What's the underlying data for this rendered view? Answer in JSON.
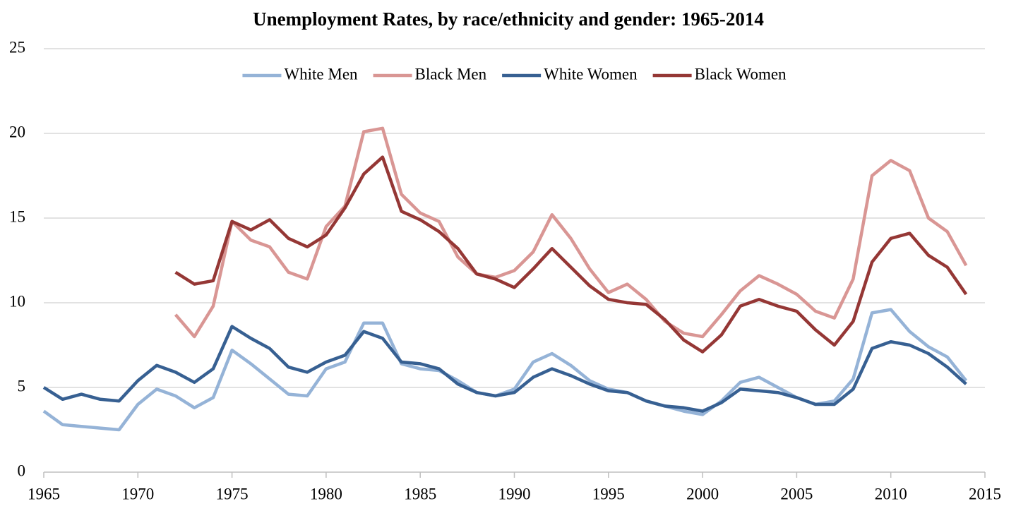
{
  "chart_data": {
    "type": "line",
    "title": "Unemployment Rates, by race/ethnicity and gender: 1965-2014",
    "x": [
      1965,
      1966,
      1967,
      1968,
      1969,
      1970,
      1971,
      1972,
      1973,
      1974,
      1975,
      1976,
      1977,
      1978,
      1979,
      1980,
      1981,
      1982,
      1983,
      1984,
      1985,
      1986,
      1987,
      1988,
      1989,
      1990,
      1991,
      1992,
      1993,
      1994,
      1995,
      1996,
      1997,
      1998,
      1999,
      2000,
      2001,
      2002,
      2003,
      2004,
      2005,
      2006,
      2007,
      2008,
      2009,
      2010,
      2011,
      2012,
      2013,
      2014
    ],
    "series": [
      {
        "name": "White Men",
        "color": "#95b3d7",
        "values": [
          3.6,
          2.8,
          2.7,
          2.6,
          2.5,
          4.0,
          4.9,
          4.5,
          3.8,
          4.4,
          7.2,
          6.4,
          5.5,
          4.6,
          4.5,
          6.1,
          6.5,
          8.8,
          8.8,
          6.4,
          6.1,
          6.0,
          5.4,
          4.7,
          4.5,
          4.9,
          6.5,
          7.0,
          6.3,
          5.4,
          4.9,
          4.7,
          4.2,
          3.9,
          3.6,
          3.4,
          4.2,
          5.3,
          5.6,
          5.0,
          4.4,
          4.0,
          4.2,
          5.5,
          9.4,
          9.6,
          8.3,
          7.4,
          6.8,
          5.4
        ]
      },
      {
        "name": "Black Men",
        "color": "#d99694",
        "values": [
          null,
          null,
          null,
          null,
          null,
          null,
          null,
          9.3,
          8.0,
          9.8,
          14.8,
          13.7,
          13.3,
          11.8,
          11.4,
          14.5,
          15.7,
          20.1,
          20.3,
          16.4,
          15.3,
          14.8,
          12.7,
          11.7,
          11.5,
          11.9,
          13.0,
          15.2,
          13.8,
          12.0,
          10.6,
          11.1,
          10.2,
          8.9,
          8.2,
          8.0,
          9.3,
          10.7,
          11.6,
          11.1,
          10.5,
          9.5,
          9.1,
          11.4,
          17.5,
          18.4,
          17.8,
          15.0,
          14.2,
          12.2
        ]
      },
      {
        "name": "White Women",
        "color": "#376092",
        "values": [
          5.0,
          4.3,
          4.6,
          4.3,
          4.2,
          5.4,
          6.3,
          5.9,
          5.3,
          6.1,
          8.6,
          7.9,
          7.3,
          6.2,
          5.9,
          6.5,
          6.9,
          8.3,
          7.9,
          6.5,
          6.4,
          6.1,
          5.2,
          4.7,
          4.5,
          4.7,
          5.6,
          6.1,
          5.7,
          5.2,
          4.8,
          4.7,
          4.2,
          3.9,
          3.8,
          3.6,
          4.1,
          4.9,
          4.8,
          4.7,
          4.4,
          4.0,
          4.0,
          4.9,
          7.3,
          7.7,
          7.5,
          7.0,
          6.2,
          5.2
        ]
      },
      {
        "name": "Black Women",
        "color": "#953735",
        "values": [
          null,
          null,
          null,
          null,
          null,
          null,
          null,
          11.8,
          11.1,
          11.3,
          14.8,
          14.3,
          14.9,
          13.8,
          13.3,
          14.0,
          15.6,
          17.6,
          18.6,
          15.4,
          14.9,
          14.2,
          13.2,
          11.7,
          11.4,
          10.9,
          12.0,
          13.2,
          12.1,
          11.0,
          10.2,
          10.0,
          9.9,
          9.0,
          7.8,
          7.1,
          8.1,
          9.8,
          10.2,
          9.8,
          9.5,
          8.4,
          7.5,
          8.9,
          12.4,
          13.8,
          14.1,
          12.8,
          12.1,
          10.5
        ]
      }
    ],
    "xlim": [
      1965,
      2015
    ],
    "xticks": [
      1965,
      1970,
      1975,
      1980,
      1985,
      1990,
      1995,
      2000,
      2005,
      2010,
      2015
    ],
    "ylim": [
      0,
      25
    ],
    "yticks": [
      0,
      5,
      10,
      15,
      20,
      25
    ],
    "grid": true,
    "legend": "top"
  }
}
